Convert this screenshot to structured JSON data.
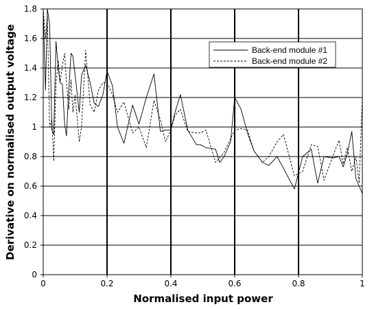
{
  "chart_data": {
    "type": "line",
    "xlabel": "Normalised input power",
    "ylabel": "Derivative on normalised output voltage",
    "xlim": [
      0,
      1
    ],
    "ylim": [
      0,
      1.8
    ],
    "x_ticks": [
      "0",
      "0.2",
      "0.4",
      "0.6",
      "0.8",
      "1"
    ],
    "y_ticks": [
      "0",
      "0.2",
      "0.4",
      "0.6",
      "0.8",
      "1",
      "1.2",
      "1.4",
      "1.6",
      "1.8"
    ],
    "grid": "major lines on both axes; bold vertical lines at x = 0.2, 0.4, 0.6, 0.8",
    "legend_position": "top-right",
    "series": [
      {
        "name": "Back-end module #1",
        "style": "solid",
        "x": [
          0.0,
          0.007,
          0.013,
          0.02,
          0.027,
          0.033,
          0.04,
          0.047,
          0.053,
          0.06,
          0.067,
          0.073,
          0.08,
          0.087,
          0.093,
          0.1,
          0.113,
          0.12,
          0.133,
          0.147,
          0.16,
          0.173,
          0.187,
          0.2,
          0.217,
          0.233,
          0.253,
          0.28,
          0.3,
          0.323,
          0.347,
          0.367,
          0.383,
          0.4,
          0.413,
          0.43,
          0.453,
          0.48,
          0.493,
          0.51,
          0.54,
          0.553,
          0.567,
          0.587,
          0.6,
          0.62,
          0.64,
          0.66,
          0.687,
          0.707,
          0.733,
          0.753,
          0.787,
          0.813,
          0.84,
          0.86,
          0.88,
          0.907,
          0.927,
          0.94,
          0.953,
          0.967,
          0.98,
          0.99,
          1.0
        ],
        "y": [
          1.8,
          1.25,
          1.8,
          1.7,
          0.98,
          0.95,
          1.58,
          1.4,
          1.3,
          1.29,
          1.02,
          0.94,
          1.25,
          1.5,
          1.48,
          1.35,
          1.1,
          1.35,
          1.42,
          1.3,
          1.16,
          1.14,
          1.22,
          1.38,
          1.28,
          1.0,
          0.89,
          1.15,
          1.02,
          1.2,
          1.36,
          0.97,
          0.98,
          0.98,
          1.1,
          1.22,
          0.98,
          0.88,
          0.88,
          0.86,
          0.85,
          0.76,
          0.8,
          0.9,
          1.2,
          1.12,
          0.96,
          0.84,
          0.76,
          0.74,
          0.8,
          0.72,
          0.58,
          0.8,
          0.85,
          0.62,
          0.8,
          0.79,
          0.8,
          0.73,
          0.82,
          0.97,
          0.65,
          0.6,
          0.55
        ]
      },
      {
        "name": "Back-end module #2",
        "style": "dashed",
        "x": [
          0.0,
          0.007,
          0.013,
          0.02,
          0.027,
          0.033,
          0.04,
          0.047,
          0.053,
          0.06,
          0.067,
          0.073,
          0.08,
          0.087,
          0.093,
          0.1,
          0.113,
          0.12,
          0.133,
          0.147,
          0.16,
          0.173,
          0.187,
          0.2,
          0.217,
          0.233,
          0.253,
          0.28,
          0.3,
          0.323,
          0.347,
          0.367,
          0.383,
          0.4,
          0.413,
          0.43,
          0.453,
          0.48,
          0.493,
          0.51,
          0.54,
          0.553,
          0.567,
          0.587,
          0.6,
          0.62,
          0.64,
          0.66,
          0.687,
          0.707,
          0.733,
          0.753,
          0.787,
          0.813,
          0.84,
          0.86,
          0.88,
          0.907,
          0.927,
          0.94,
          0.953,
          0.967,
          0.98,
          0.99,
          1.0
        ],
        "y": [
          1.8,
          1.6,
          1.75,
          1.0,
          1.05,
          0.77,
          1.3,
          1.45,
          1.3,
          1.42,
          1.5,
          1.3,
          1.12,
          1.32,
          1.1,
          1.22,
          0.9,
          1.0,
          1.52,
          1.15,
          1.1,
          1.25,
          1.3,
          1.3,
          1.22,
          1.1,
          1.17,
          0.96,
          1.0,
          0.86,
          1.18,
          1.05,
          0.9,
          0.98,
          1.08,
          1.12,
          0.97,
          0.96,
          0.96,
          0.98,
          0.76,
          0.79,
          0.83,
          0.92,
          0.98,
          0.99,
          0.98,
          0.84,
          0.76,
          0.8,
          0.9,
          0.95,
          0.67,
          0.7,
          0.88,
          0.87,
          0.64,
          0.8,
          0.91,
          0.75,
          0.86,
          0.7,
          0.8,
          0.62,
          1.2
        ]
      }
    ]
  }
}
